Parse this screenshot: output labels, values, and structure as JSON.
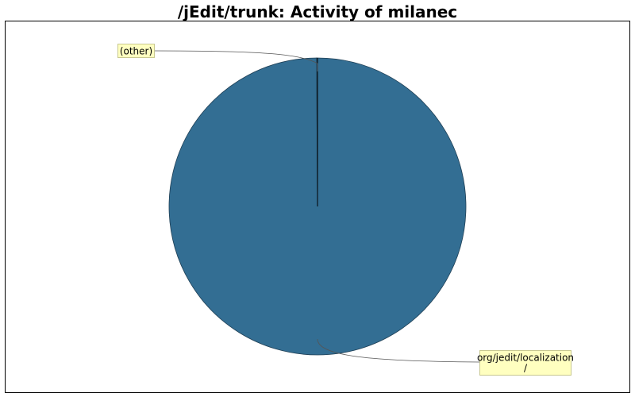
{
  "chart_data": {
    "type": "pie",
    "title": "/jEdit/trunk: Activity of milanec",
    "slices": [
      {
        "label": "org/jedit/localization/",
        "value": 99.9,
        "color": "#336e93"
      },
      {
        "label": "(other)",
        "value": 0.1,
        "color": "#336e93"
      }
    ],
    "colors": {
      "slice": "#336e93",
      "label_background": "#ffffc0",
      "label_border": "#c8c890",
      "frame": "#000000"
    }
  }
}
